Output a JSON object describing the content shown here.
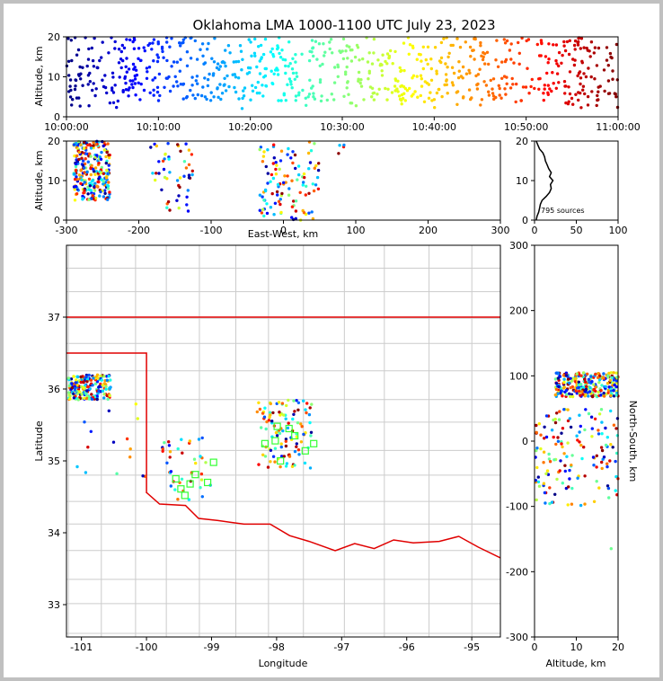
{
  "colors": {
    "background": "#c0c0c0",
    "state_border": "#e00000",
    "county_lines": "#c8c8c8",
    "station_marker": "#33ff33",
    "altitude_histogram": "#000000"
  },
  "chart_data": [
    {
      "id": "time-altitude",
      "type": "scatter",
      "title": "Oklahoma LMA 1000-1100 UTC July 23, 2023",
      "xlabel": "",
      "ylabel": "Altitude, km",
      "xlim": [
        "10:00:00",
        "11:00:00"
      ],
      "xticks": [
        "10:00:00",
        "10:10:00",
        "10:20:00",
        "10:30:00",
        "10:40:00",
        "10:50:00",
        "11:00:00"
      ],
      "ylim": [
        0,
        20
      ],
      "yticks": [
        0,
        10,
        20
      ],
      "color_encoding": "time (blue → red)"
    },
    {
      "id": "eastwest-altitude",
      "type": "scatter",
      "xlabel": "East-West, km",
      "ylabel": "Altitude, km",
      "xlim": [
        -300,
        300
      ],
      "xticks": [
        -300,
        -200,
        -100,
        0,
        100,
        200,
        300
      ],
      "ylim": [
        0,
        20
      ],
      "yticks": [
        0,
        10,
        20
      ],
      "clusters": [
        {
          "x": [
            -290,
            -240
          ],
          "y": [
            5,
            20
          ],
          "n": 260
        },
        {
          "x": [
            -185,
            -125
          ],
          "y": [
            2,
            20
          ],
          "n": 50
        },
        {
          "x": [
            -35,
            50
          ],
          "y": [
            0,
            20
          ],
          "n": 110
        },
        {
          "x": [
            75,
            110
          ],
          "y": [
            16,
            20
          ],
          "n": 4
        }
      ]
    },
    {
      "id": "altitude-histogram",
      "type": "line",
      "xlim": [
        0,
        100
      ],
      "xticks": [
        0,
        50,
        100
      ],
      "ylim": [
        0,
        20
      ],
      "yticks": [
        0,
        10,
        20
      ],
      "annotation": "795 sources",
      "altitude_km": [
        0,
        1,
        2,
        3,
        4,
        5,
        6,
        7,
        8,
        9,
        10,
        11,
        12,
        13,
        14,
        15,
        16,
        17,
        18,
        19,
        20
      ],
      "counts": [
        2,
        3,
        5,
        6,
        7,
        9,
        14,
        18,
        20,
        19,
        22,
        18,
        20,
        17,
        15,
        13,
        12,
        10,
        6,
        4,
        2
      ]
    },
    {
      "id": "plan-view",
      "type": "scatter",
      "xlabel": "Longitude",
      "ylabel": "Latitude",
      "xlim": [
        -101.23,
        -94.56
      ],
      "xticks": [
        -101,
        -100,
        -99,
        -98,
        -97,
        -96,
        -95
      ],
      "ylim": [
        32.55,
        38.0
      ],
      "yticks": [
        33,
        34,
        35,
        36,
        37
      ],
      "stations": [
        {
          "lon": -97.99,
          "lat": 35.48
        },
        {
          "lon": -97.81,
          "lat": 35.45
        },
        {
          "lon": -97.72,
          "lat": 35.35
        },
        {
          "lon": -98.02,
          "lat": 35.28
        },
        {
          "lon": -98.18,
          "lat": 35.24
        },
        {
          "lon": -97.56,
          "lat": 35.14
        },
        {
          "lon": -97.43,
          "lat": 35.24
        },
        {
          "lon": -97.94,
          "lat": 35.0
        },
        {
          "lon": -98.97,
          "lat": 34.98
        },
        {
          "lon": -99.25,
          "lat": 34.81
        },
        {
          "lon": -99.06,
          "lat": 34.7
        },
        {
          "lon": -99.55,
          "lat": 34.75
        },
        {
          "lon": -99.33,
          "lat": 34.68
        },
        {
          "lon": -99.47,
          "lat": 34.61
        },
        {
          "lon": -99.41,
          "lat": 34.52
        }
      ],
      "clusters": [
        {
          "lon": [
            -101.2,
            -100.55
          ],
          "lat": [
            35.85,
            36.2
          ],
          "n": 200
        },
        {
          "lon": [
            -99.8,
            -99.0
          ],
          "lat": [
            34.45,
            35.35
          ],
          "n": 40
        },
        {
          "lon": [
            -98.3,
            -97.45
          ],
          "lat": [
            34.9,
            35.85
          ],
          "n": 110
        },
        {
          "lon": [
            -101.2,
            -100.0
          ],
          "lat": [
            34.4,
            35.8
          ],
          "n": 15
        }
      ]
    },
    {
      "id": "altitude-northsouth",
      "type": "scatter",
      "xlabel": "Altitude, km",
      "ylabel": "North-South, km",
      "xlim": [
        0,
        20
      ],
      "xticks": [
        0,
        10,
        20
      ],
      "ylim": [
        -300,
        300
      ],
      "yticks": [
        -300,
        -200,
        -100,
        0,
        100,
        200,
        300
      ],
      "clusters": [
        {
          "x": [
            5,
            20
          ],
          "y": [
            68,
            105
          ],
          "n": 260
        },
        {
          "x": [
            0,
            20
          ],
          "y": [
            -100,
            50
          ],
          "n": 150
        },
        {
          "x": [
            15,
            20
          ],
          "y": [
            -165,
            -160
          ],
          "n": 1
        }
      ]
    }
  ]
}
